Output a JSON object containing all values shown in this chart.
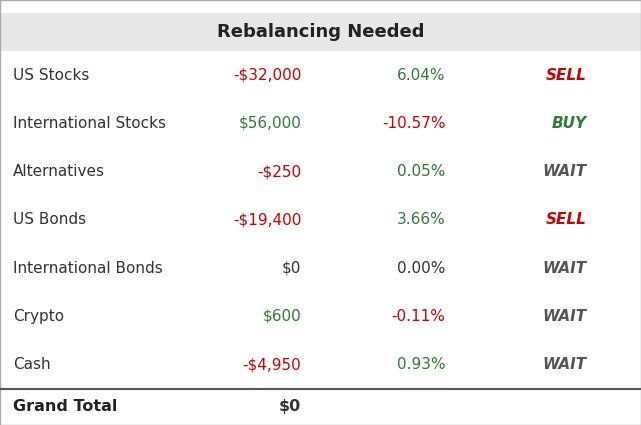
{
  "title": "Rebalancing Needed",
  "title_bg": "#e8e8e8",
  "bg_color": "#ffffff",
  "rows": [
    {
      "label": "US Stocks",
      "amount": "-$32,000",
      "amount_color": "#cc0000",
      "percent": "6.04%",
      "percent_color": "#2e7d32",
      "action": "SELL",
      "action_color": "#cc0000"
    },
    {
      "label": "International Stocks",
      "amount": "$56,000",
      "amount_color": "#2e7d32",
      "percent": "-10.57%",
      "percent_color": "#cc0000",
      "action": "BUY",
      "action_color": "#2e7d32"
    },
    {
      "label": "Alternatives",
      "amount": "-$250",
      "amount_color": "#cc0000",
      "percent": "0.05%",
      "percent_color": "#2e7d32",
      "action": "WAIT",
      "action_color": "#555555"
    },
    {
      "label": "US Bonds",
      "amount": "-$19,400",
      "amount_color": "#cc0000",
      "percent": "3.66%",
      "percent_color": "#2e7d32",
      "action": "SELL",
      "action_color": "#cc0000"
    },
    {
      "label": "International Bonds",
      "amount": "$0",
      "amount_color": "#333333",
      "percent": "0.00%",
      "percent_color": "#333333",
      "action": "WAIT",
      "action_color": "#555555"
    },
    {
      "label": "Crypto",
      "amount": "$600",
      "amount_color": "#2e7d32",
      "percent": "-0.11%",
      "percent_color": "#cc0000",
      "action": "WAIT",
      "action_color": "#555555"
    },
    {
      "label": "Cash",
      "amount": "-$4,950",
      "amount_color": "#cc0000",
      "percent": "0.93%",
      "percent_color": "#2e7d32",
      "action": "WAIT",
      "action_color": "#555555"
    }
  ],
  "footer_label": "Grand Total",
  "footer_amount": "$0",
  "footer_color": "#333333"
}
